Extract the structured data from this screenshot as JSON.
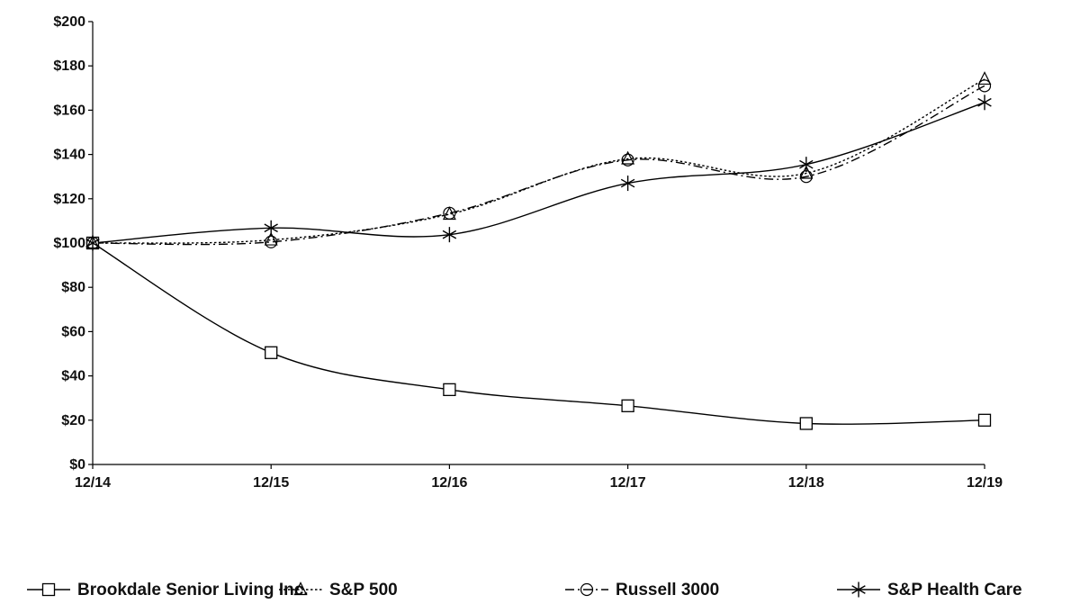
{
  "chart_data": {
    "type": "line",
    "title": "",
    "xlabel": "",
    "ylabel": "",
    "categories": [
      "12/14",
      "12/15",
      "12/16",
      "12/17",
      "12/18",
      "12/19"
    ],
    "y_ticks": [
      "$0",
      "$20",
      "$40",
      "$60",
      "$80",
      "$100",
      "$120",
      "$140",
      "$160",
      "$180",
      "$200"
    ],
    "ylim": [
      0,
      200
    ],
    "grid": false,
    "legend_position": "bottom",
    "series": [
      {
        "name": "Brookdale Senior Living Inc.",
        "values": [
          100,
          50.5,
          33.8,
          26.5,
          18.5,
          20
        ],
        "marker": "square",
        "line_style": "solid",
        "color": "#000000"
      },
      {
        "name": "S&P 500",
        "values": [
          100,
          101.4,
          113,
          138,
          131.5,
          174
        ],
        "marker": "triangle",
        "line_style": "dotted",
        "color": "#000000"
      },
      {
        "name": "Russell 3000",
        "values": [
          100,
          100.5,
          113.5,
          137.5,
          130,
          171
        ],
        "marker": "circle",
        "line_style": "dash-dot",
        "color": "#000000"
      },
      {
        "name": "S&P Health Care",
        "values": [
          100,
          106.8,
          103.8,
          127,
          135.5,
          163.5
        ],
        "marker": "asterisk",
        "line_style": "solid",
        "color": "#000000"
      }
    ]
  }
}
